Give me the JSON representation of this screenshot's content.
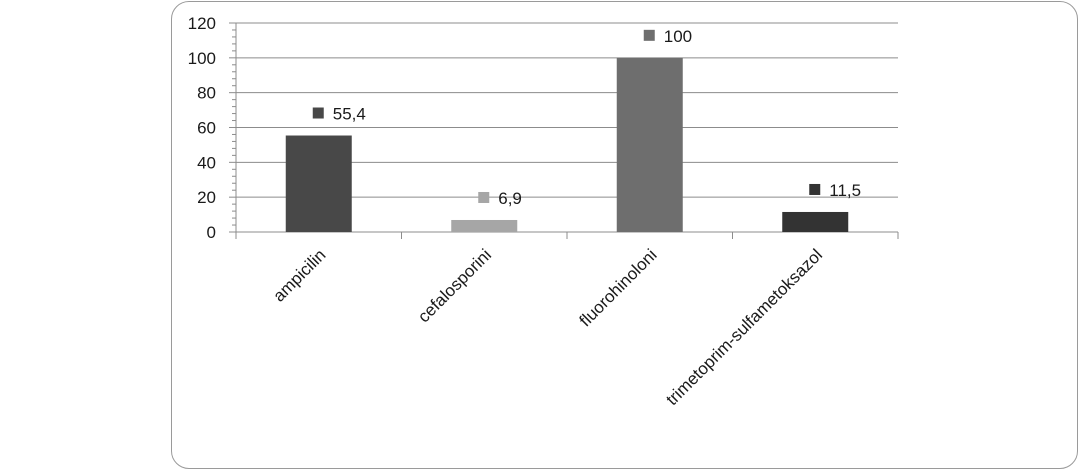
{
  "chart_data": {
    "type": "bar",
    "categories": [
      "ampicilin",
      "cefalosporini",
      "fluorohinoloni",
      "trimetoprim-sulfametoksazol"
    ],
    "values": [
      55.4,
      6.9,
      100,
      11.5
    ],
    "value_labels": [
      "55,4",
      "6,9",
      "100",
      "11,5"
    ],
    "bar_colors": [
      "#484848",
      "#a6a6a6",
      "#6e6e6e",
      "#333333"
    ],
    "ylim": [
      0,
      120
    ],
    "yticks": [
      0,
      20,
      40,
      60,
      80,
      100,
      120
    ],
    "ytick_labels": [
      "0",
      "20",
      "40",
      "60",
      "80",
      "100",
      "120"
    ],
    "grid": true,
    "legend": "none"
  }
}
